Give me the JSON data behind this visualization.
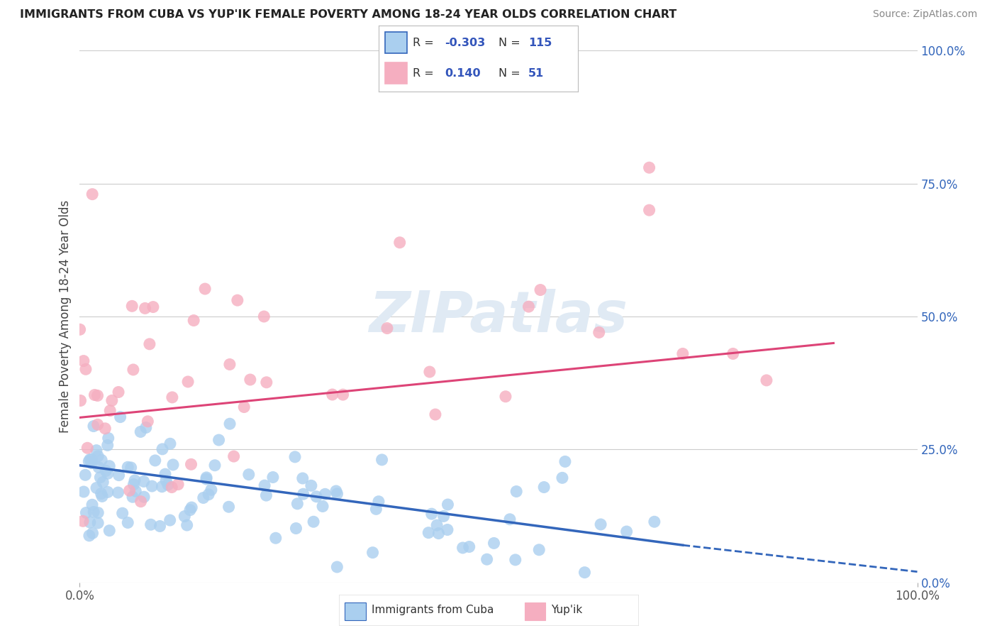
{
  "title": "IMMIGRANTS FROM CUBA VS YUP'IK FEMALE POVERTY AMONG 18-24 YEAR OLDS CORRELATION CHART",
  "source": "Source: ZipAtlas.com",
  "ylabel": "Female Poverty Among 18-24 Year Olds",
  "blue_R": -0.303,
  "blue_N": 115,
  "pink_R": 0.14,
  "pink_N": 51,
  "blue_color": "#aacfef",
  "pink_color": "#f5aec0",
  "blue_line_color": "#3366bb",
  "pink_line_color": "#dd4477",
  "legend_blue_label": "Immigrants from Cuba",
  "legend_pink_label": "Yup'ik",
  "watermark_text": "ZIPatlas",
  "background_color": "#ffffff",
  "grid_color": "#cccccc",
  "legend_R_color": "#3355bb",
  "legend_text_color": "#333333",
  "right_tick_color": "#3366bb",
  "title_color": "#222222",
  "source_color": "#888888"
}
